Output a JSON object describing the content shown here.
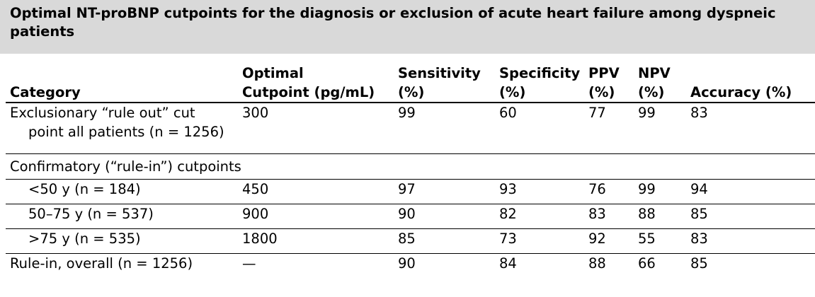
{
  "title": "Optimal NT-proBNP cutpoints for the diagnosis or exclusion of acute heart failure among dyspneic patients",
  "headers": [
    "Category",
    "Optimal Cutpoint (pg/mL)",
    "Sensitivity (%)",
    "Specificity (%)",
    "PPV (%)",
    "NPV (%)",
    "Accuracy (%)"
  ],
  "header_lines": [
    [
      "Category"
    ],
    [
      "Optimal",
      "Cutpoint (pg/mL)"
    ],
    [
      "Sensitivity",
      "(%)"
    ],
    [
      "Specificity",
      "(%)"
    ],
    [
      "PPV",
      "(%)"
    ],
    [
      "NPV",
      "(%)"
    ],
    [
      "Accuracy (%)"
    ]
  ],
  "rows": [
    {
      "category": "Exclusionary “rule out” cut point all patients (n = 1256)",
      "cutpoint": "300",
      "sensitivity": "99",
      "specificity": "60",
      "ppv": "77",
      "npv": "99",
      "accuracy": "83"
    },
    {
      "group_label": "Confirmatory (“rule-in”) cutpoints"
    },
    {
      "category": "<50 y (n = 184)",
      "cutpoint": "450",
      "sensitivity": "97",
      "specificity": "93",
      "ppv": "76",
      "npv": "99",
      "accuracy": "94"
    },
    {
      "category": "50–75 y (n = 537)",
      "cutpoint": "900",
      "sensitivity": "90",
      "specificity": "82",
      "ppv": "83",
      "npv": "88",
      "accuracy": "85"
    },
    {
      "category": ">75 y (n = 535)",
      "cutpoint": "1800",
      "sensitivity": "85",
      "specificity": "73",
      "ppv": "92",
      "npv": "55",
      "accuracy": "83"
    },
    {
      "category": "Rule-in, overall (n = 1256)",
      "cutpoint": "—",
      "sensitivity": "90",
      "specificity": "84",
      "ppv": "88",
      "npv": "66",
      "accuracy": "85"
    }
  ],
  "colors": {
    "title_background": "#d9d9d9",
    "text": "#000000",
    "rule": "#000000"
  }
}
